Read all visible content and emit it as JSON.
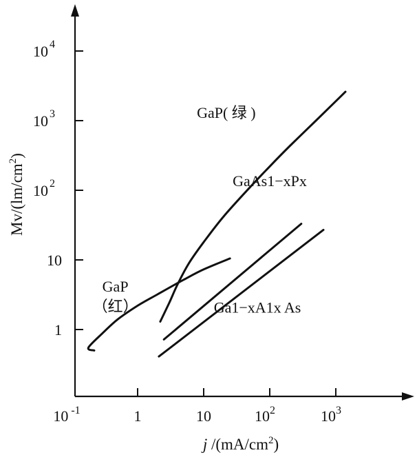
{
  "chart_data": {
    "type": "line",
    "title": "",
    "xlabel_italic": "j",
    "xlabel_rest": " /(mA/cm",
    "xlabel_sup": "2",
    "xlabel_close": ")",
    "ylabel": "Mv/(lm/cm",
    "ylabel_sup": "2",
    "ylabel_close": ")",
    "x_scale": "log",
    "y_scale": "log",
    "xlim": [
      0.1,
      5000
    ],
    "ylim": [
      0.3,
      40000
    ],
    "grid": false,
    "x_ticks": [
      {
        "value": 0.1,
        "base": "10",
        "exp": " -1"
      },
      {
        "value": 1,
        "base": "1",
        "exp": ""
      },
      {
        "value": 10,
        "base": "10",
        "exp": ""
      },
      {
        "value": 100,
        "base": "10",
        "exp": "2"
      },
      {
        "value": 1000,
        "base": "10",
        "exp": "3"
      }
    ],
    "y_ticks": [
      {
        "value": 1,
        "base": "1",
        "exp": ""
      },
      {
        "value": 10,
        "base": "10",
        "exp": ""
      },
      {
        "value": 100,
        "base": "10",
        "exp": "2"
      },
      {
        "value": 1000,
        "base": "10",
        "exp": "3"
      },
      {
        "value": 10000,
        "base": "10",
        "exp": "4"
      }
    ],
    "series": [
      {
        "name": "GaP(绿)",
        "points": [
          [
            2.2,
            1.3
          ],
          [
            3,
            2.4
          ],
          [
            4,
            4.4
          ],
          [
            6,
            9
          ],
          [
            10,
            18
          ],
          [
            20,
            42
          ],
          [
            50,
            110
          ],
          [
            100,
            220
          ],
          [
            200,
            430
          ],
          [
            500,
            1000
          ],
          [
            1000,
            1900
          ],
          [
            1400,
            2600
          ]
        ]
      },
      {
        "name": "GaP(红)",
        "points": [
          [
            0.22,
            0.5
          ],
          [
            0.18,
            0.55
          ],
          [
            0.3,
            0.9
          ],
          [
            0.5,
            1.4
          ],
          [
            1,
            2.2
          ],
          [
            2,
            3.2
          ],
          [
            5,
            5.2
          ],
          [
            10,
            7.3
          ],
          [
            25,
            10.5
          ]
        ]
      },
      {
        "name": "GaAs1−xPx",
        "points": [
          [
            2.5,
            0.72
          ],
          [
            300,
            33
          ]
        ]
      },
      {
        "name": "Ga1−xA1x As",
        "points": [
          [
            2.1,
            0.41
          ],
          [
            650,
            27
          ]
        ]
      }
    ],
    "annotations": [
      {
        "id": "gap-green",
        "lines": [
          "GaP( 绿 )"
        ],
        "at": [
          22,
          1100
        ]
      },
      {
        "id": "gap-red",
        "lines": [
          "GaP",
          "（红）"
        ],
        "at": [
          0.46,
          3.5
        ]
      },
      {
        "id": "gaasp",
        "lines": [
          "GaAs1−xPx"
        ],
        "at": [
          100,
          115
        ]
      },
      {
        "id": "gaalas",
        "lines": [
          "Ga1−xA1x As"
        ],
        "at": [
          65,
          1.75
        ]
      }
    ]
  }
}
